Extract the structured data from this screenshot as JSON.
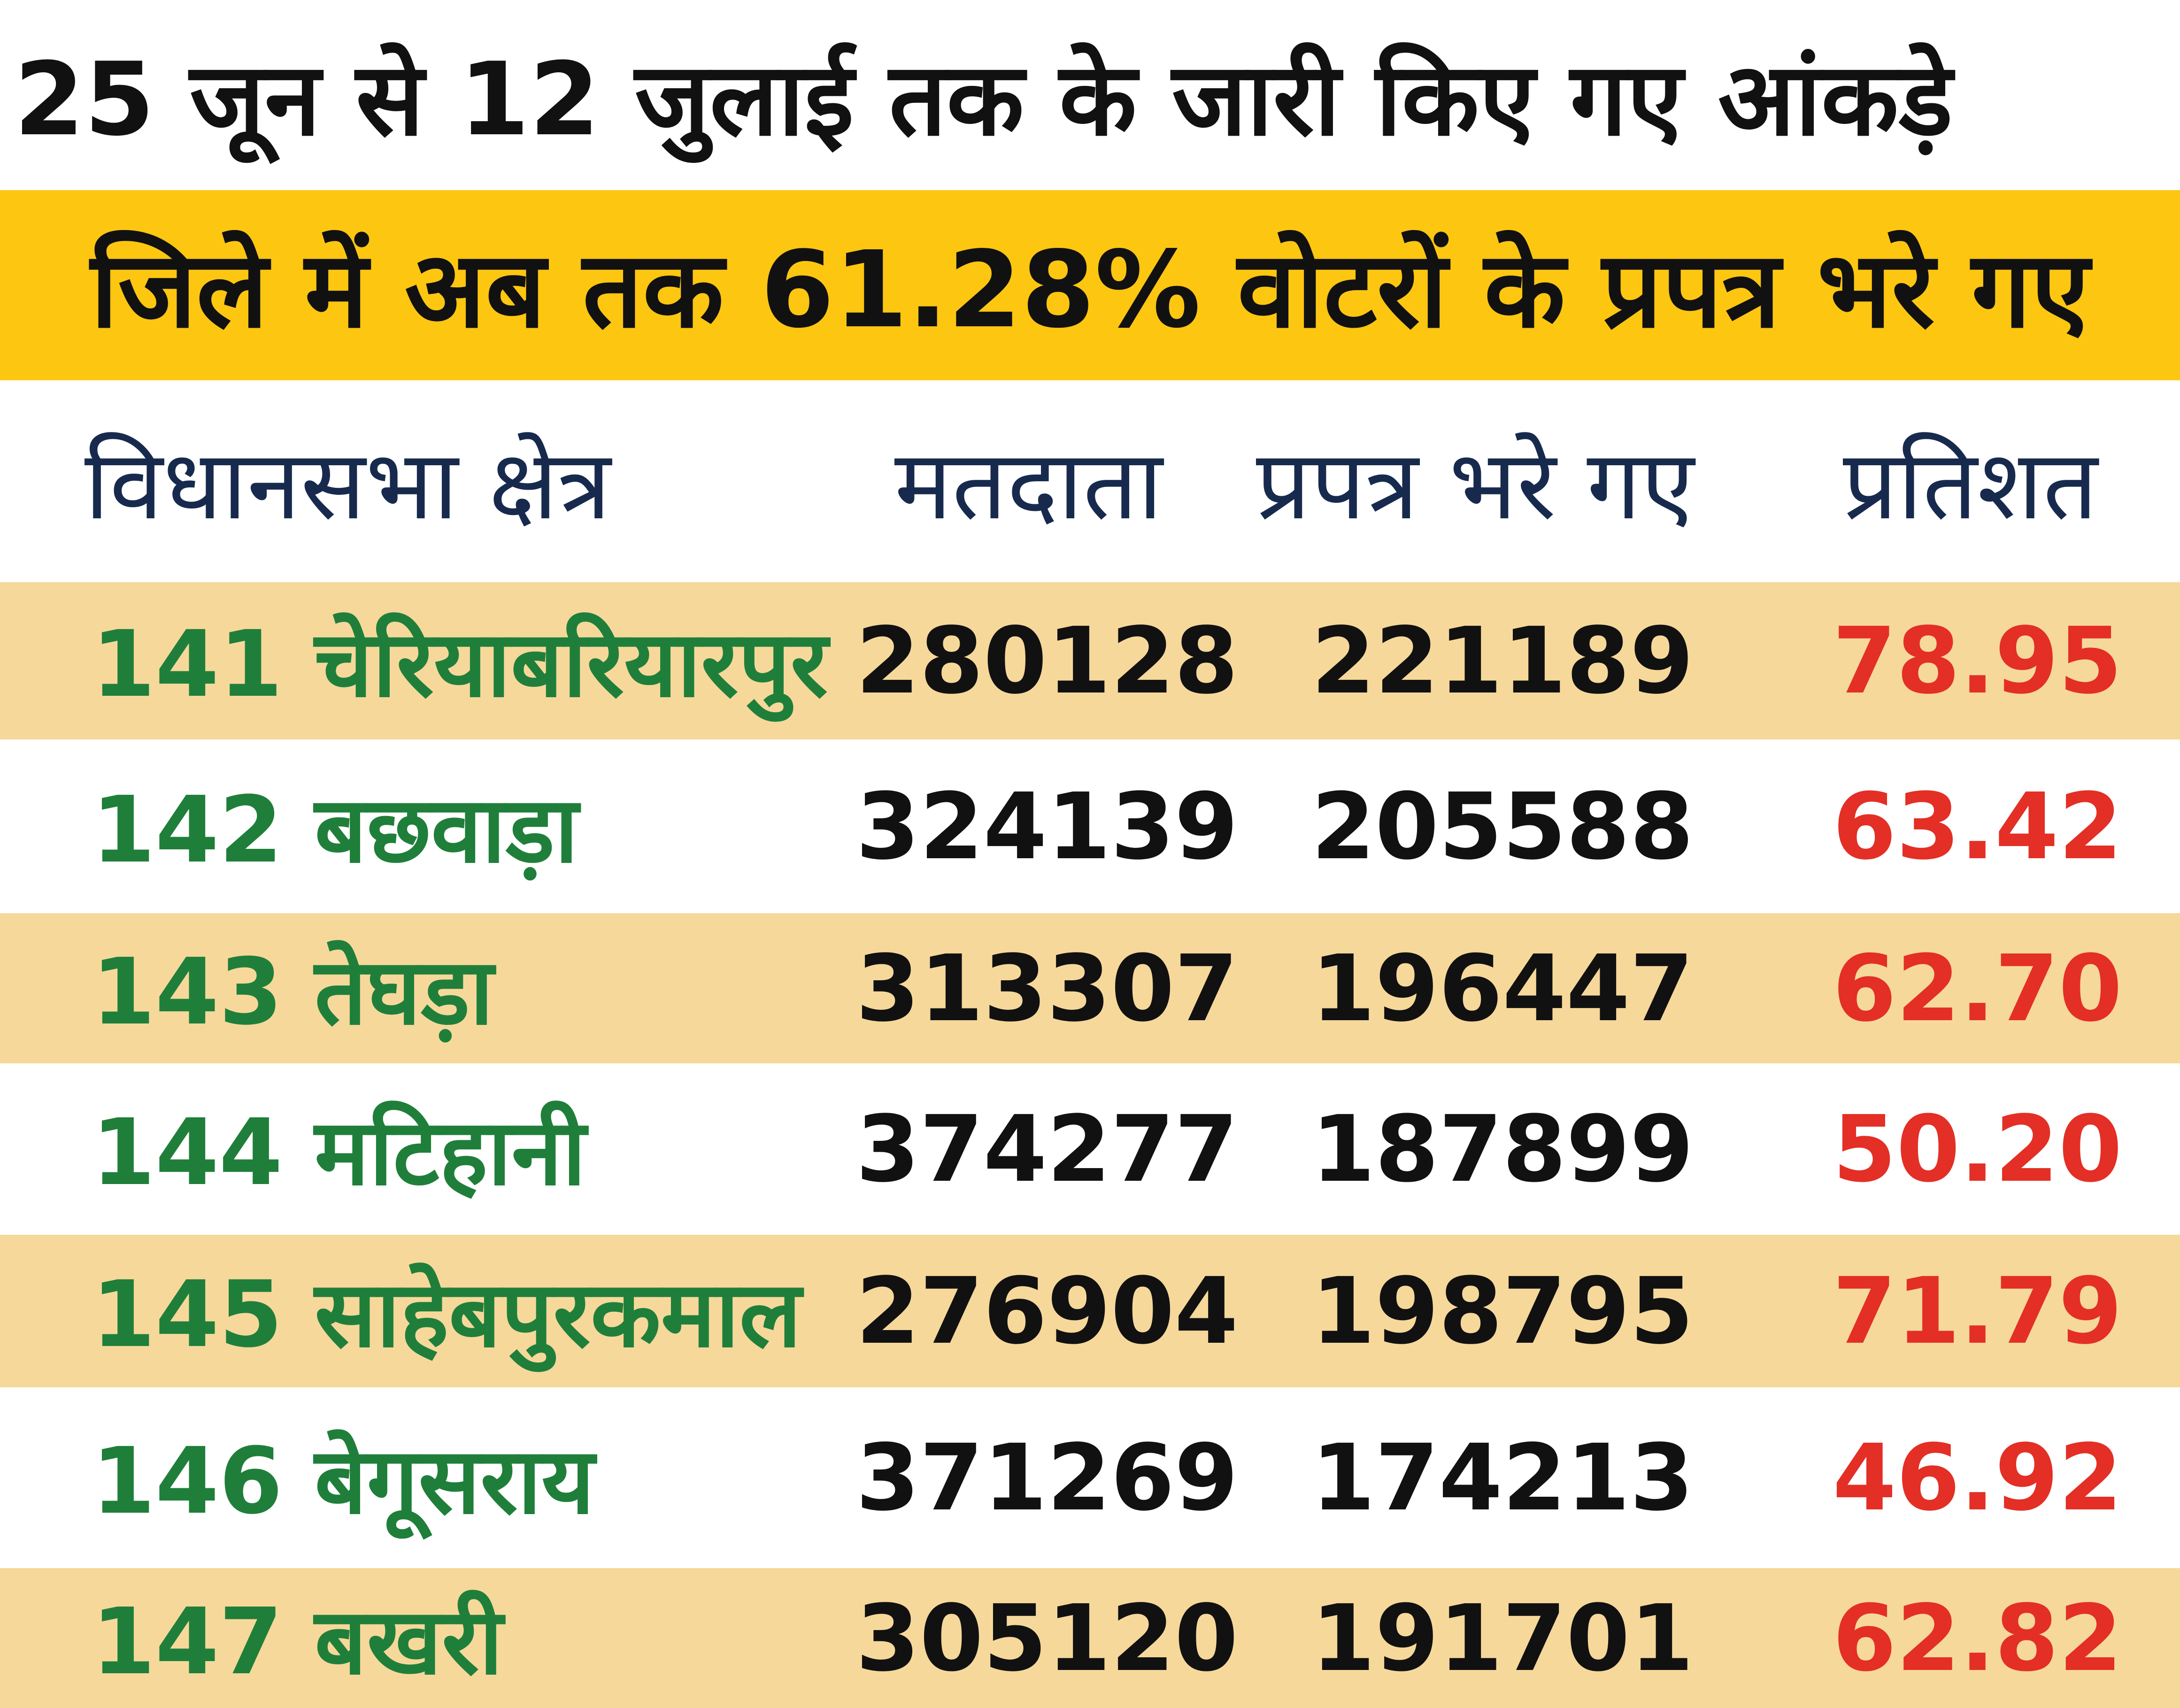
{
  "title": "25 जून से 12  जुलाई तक के जारी किए गए आंकड़े",
  "banner": "जिले में अब तक 61.28% वोटरों के प्रपत्र भरे गए",
  "columns": {
    "name": "विधानसभा क्षेत्र",
    "voters": "मतदाता",
    "filled": "प्रपत्र भरे गए",
    "percent": "प्रतिशत"
  },
  "rows": [
    {
      "name": "141 चेरियाबरियारपुर",
      "voters": "280128",
      "filled": "221189",
      "percent": "78.95"
    },
    {
      "name": "142 बछवाड़ा",
      "voters": "324139",
      "filled": "205588",
      "percent": "63.42"
    },
    {
      "name": "143 तेघड़ा",
      "voters": "313307",
      "filled": "196447",
      "percent": "62.70"
    },
    {
      "name": "144 मटिहानी",
      "voters": "374277",
      "filled": "187899",
      "percent": "50.20"
    },
    {
      "name": "145 साहेबपुरकमाल",
      "voters": "276904",
      "filled": "198795",
      "percent": "71.79"
    },
    {
      "name": "146 बेगूसराय",
      "voters": "371269",
      "filled": "174213",
      "percent": "46.92"
    },
    {
      "name": "147 बखरी",
      "voters": "305120",
      "filled": "191701",
      "percent": "62.82"
    }
  ],
  "colors": {
    "banner_bg": "#fdc611",
    "row_shade": "#f6d89b",
    "name_text": "#1f7f3a",
    "percent_text": "#e32f25",
    "header_text": "#172a4e"
  }
}
